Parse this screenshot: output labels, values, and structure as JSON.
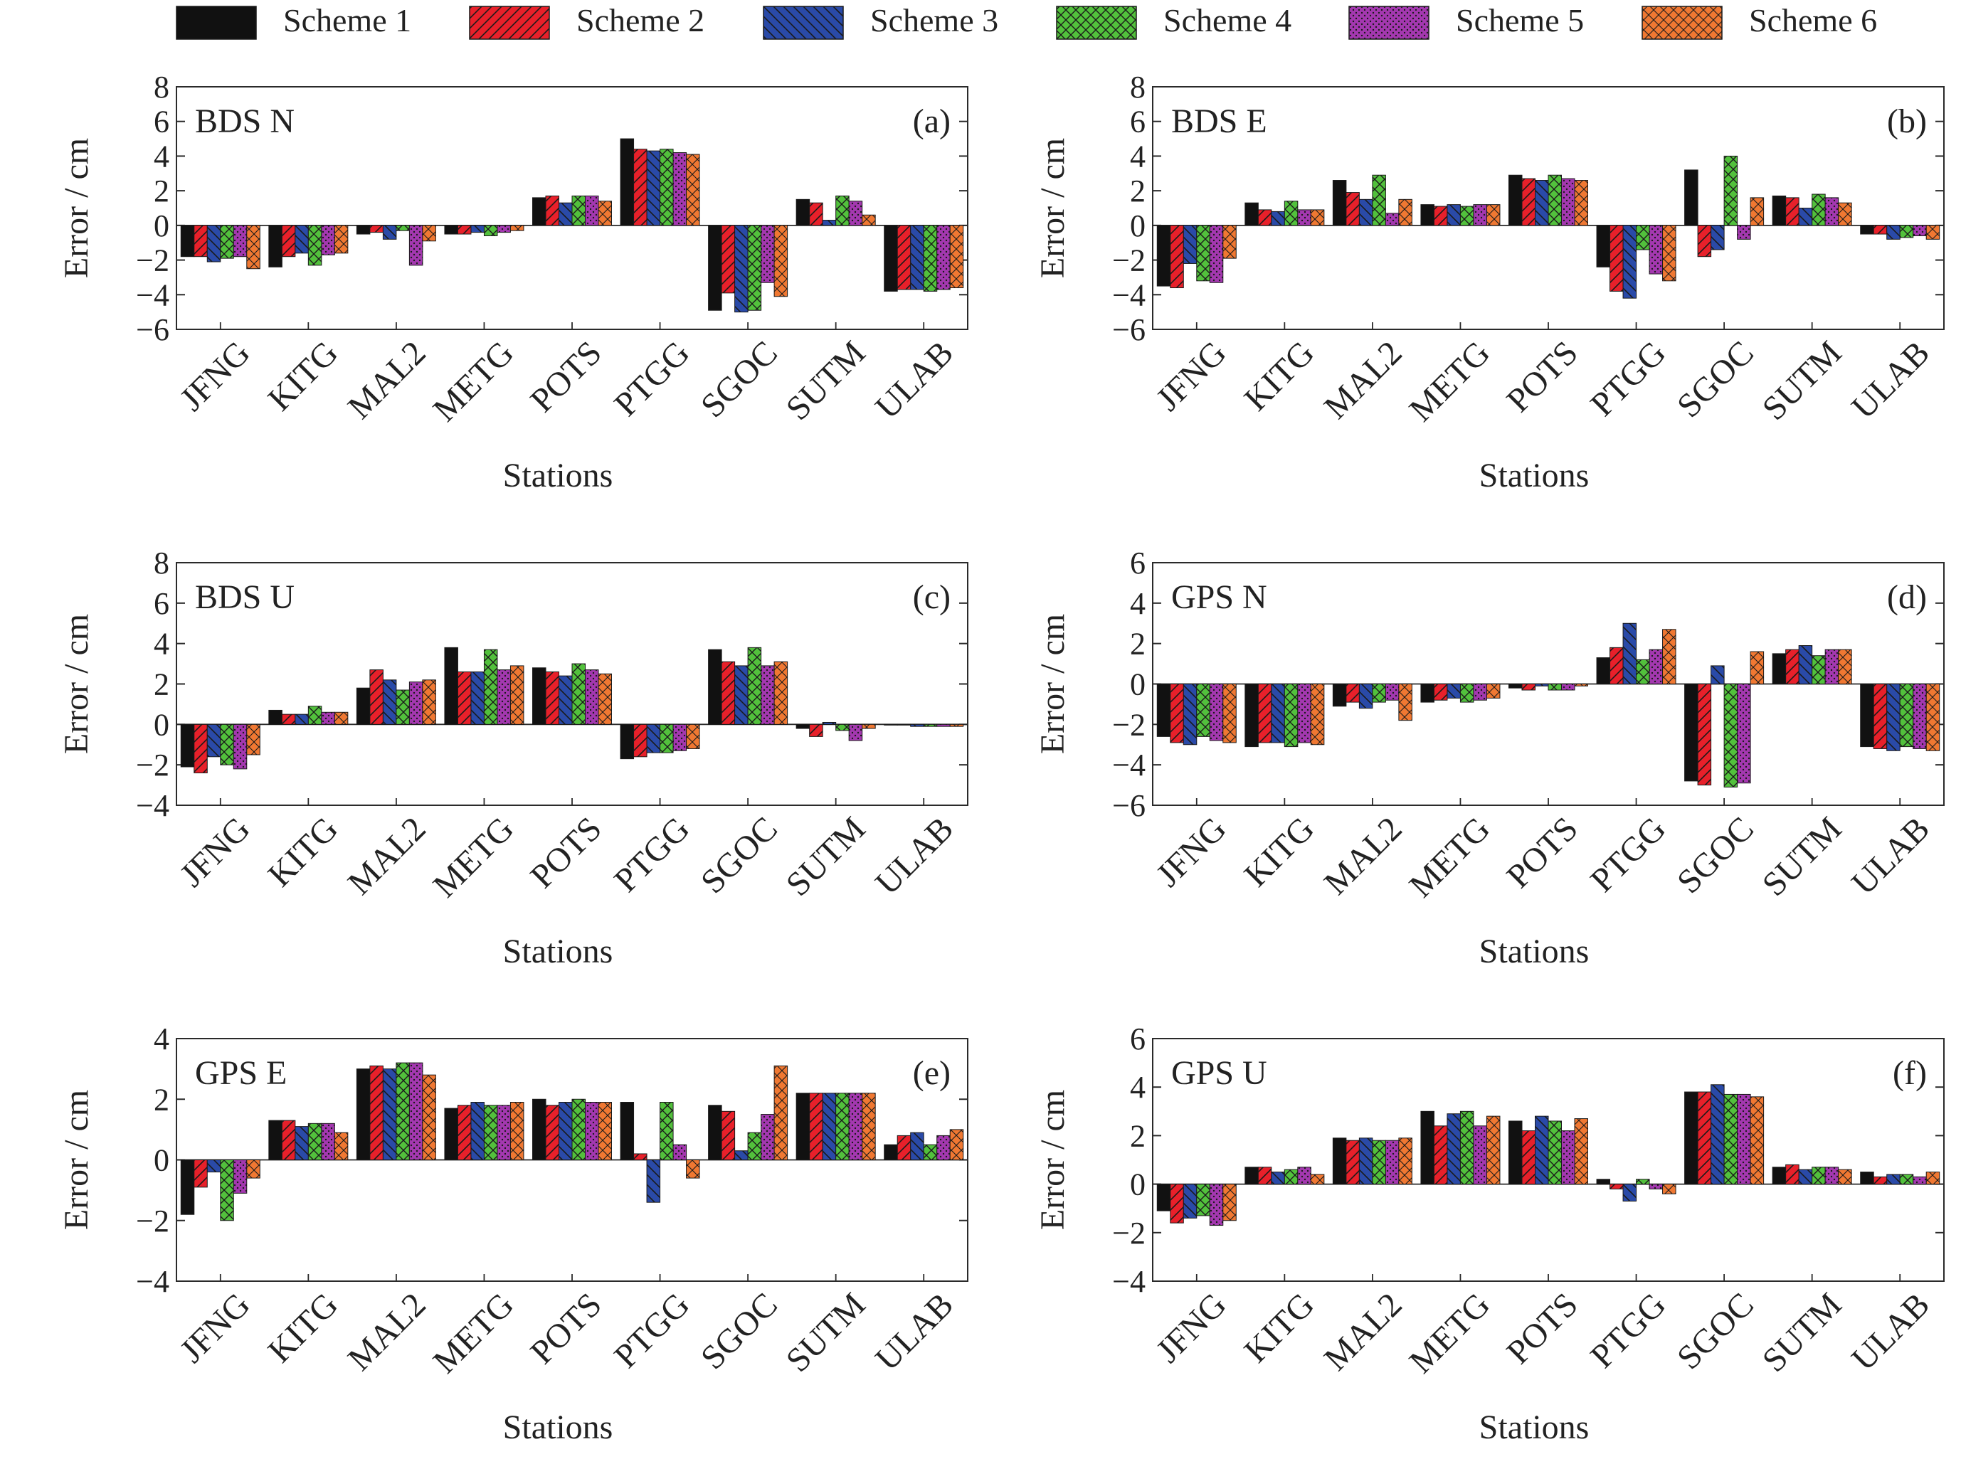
{
  "legend": {
    "entries": [
      "Scheme 1",
      "Scheme 2",
      "Scheme 3",
      "Scheme 4",
      "Scheme 5",
      "Scheme 6"
    ],
    "colors": [
      "#111111",
      "#e8202a",
      "#2a4aa8",
      "#52c13c",
      "#a438b0",
      "#f07832"
    ],
    "patterns": [
      "solid",
      "hatch-right",
      "hatch-left",
      "crosshatch",
      "dots",
      "crosshatch-fine"
    ]
  },
  "chart_data": [
    {
      "type": "bar",
      "panel_title": "BDS N",
      "panel_tag": "(a)",
      "xlabel": "Stations",
      "ylabel": "Error / cm",
      "ylim": [
        -6,
        8
      ],
      "yticks": [
        8,
        6,
        4,
        2,
        0,
        -2,
        -4,
        -6
      ],
      "categories": [
        "JFNG",
        "KITG",
        "MAL2",
        "METG",
        "POTS",
        "PTGG",
        "SGOC",
        "SUTM",
        "ULAB"
      ],
      "series": [
        {
          "name": "Scheme 1",
          "values": [
            -1.8,
            -2.4,
            -0.5,
            -0.5,
            1.6,
            5.0,
            -4.9,
            1.5,
            -3.8
          ]
        },
        {
          "name": "Scheme 2",
          "values": [
            -1.8,
            -1.8,
            -0.4,
            -0.5,
            1.7,
            4.4,
            -3.9,
            1.3,
            -3.7
          ]
        },
        {
          "name": "Scheme 3",
          "values": [
            -2.1,
            -1.6,
            -0.8,
            -0.4,
            1.3,
            4.3,
            -5.0,
            0.3,
            -3.7
          ]
        },
        {
          "name": "Scheme 4",
          "values": [
            -1.9,
            -2.3,
            -0.3,
            -0.6,
            1.7,
            4.4,
            -4.9,
            1.7,
            -3.8
          ]
        },
        {
          "name": "Scheme 5",
          "values": [
            -1.8,
            -1.7,
            -2.3,
            -0.4,
            1.7,
            4.2,
            -3.3,
            1.4,
            -3.7
          ]
        },
        {
          "name": "Scheme 6",
          "values": [
            -2.5,
            -1.6,
            -0.9,
            -0.3,
            1.4,
            4.1,
            -4.1,
            0.6,
            -3.6
          ]
        }
      ]
    },
    {
      "type": "bar",
      "panel_title": "BDS E",
      "panel_tag": "(b)",
      "xlabel": "Stations",
      "ylabel": "Error / cm",
      "ylim": [
        -6,
        8
      ],
      "yticks": [
        8,
        6,
        4,
        2,
        0,
        -2,
        -4,
        -6
      ],
      "categories": [
        "JFNG",
        "KITG",
        "MAL2",
        "METG",
        "POTS",
        "PTGG",
        "SGOC",
        "SUTM",
        "ULAB"
      ],
      "series": [
        {
          "name": "Scheme 1",
          "values": [
            -3.5,
            1.3,
            2.6,
            1.2,
            2.9,
            -2.4,
            3.2,
            1.7,
            -0.5
          ]
        },
        {
          "name": "Scheme 2",
          "values": [
            -3.6,
            0.9,
            1.9,
            1.1,
            2.7,
            -3.8,
            -1.8,
            1.6,
            -0.5
          ]
        },
        {
          "name": "Scheme 3",
          "values": [
            -2.2,
            0.8,
            1.5,
            1.2,
            2.6,
            -4.2,
            -1.4,
            1.0,
            -0.8
          ]
        },
        {
          "name": "Scheme 4",
          "values": [
            -3.2,
            1.4,
            2.9,
            1.1,
            2.9,
            -1.4,
            4.0,
            1.8,
            -0.7
          ]
        },
        {
          "name": "Scheme 5",
          "values": [
            -3.3,
            0.9,
            0.7,
            1.2,
            2.7,
            -2.8,
            -0.8,
            1.6,
            -0.6
          ]
        },
        {
          "name": "Scheme 6",
          "values": [
            -1.9,
            0.9,
            1.5,
            1.2,
            2.6,
            -3.2,
            1.6,
            1.3,
            -0.8
          ]
        }
      ]
    },
    {
      "type": "bar",
      "panel_title": "BDS U",
      "panel_tag": "(c)",
      "xlabel": "Stations",
      "ylabel": "Error / cm",
      "ylim": [
        -4,
        8
      ],
      "yticks": [
        8,
        6,
        4,
        2,
        0,
        -2,
        -4
      ],
      "categories": [
        "JFNG",
        "KITG",
        "MAL2",
        "METG",
        "POTS",
        "PTGG",
        "SGOC",
        "SUTM",
        "ULAB"
      ],
      "series": [
        {
          "name": "Scheme 1",
          "values": [
            -2.1,
            0.7,
            1.8,
            3.8,
            2.8,
            -1.7,
            3.7,
            -0.2,
            0.0
          ]
        },
        {
          "name": "Scheme 2",
          "values": [
            -2.4,
            0.5,
            2.7,
            2.6,
            2.6,
            -1.6,
            3.1,
            -0.6,
            0.0
          ]
        },
        {
          "name": "Scheme 3",
          "values": [
            -1.6,
            0.5,
            2.2,
            2.6,
            2.4,
            -1.4,
            2.9,
            0.1,
            -0.1
          ]
        },
        {
          "name": "Scheme 4",
          "values": [
            -2.0,
            0.9,
            1.7,
            3.7,
            3.0,
            -1.4,
            3.8,
            -0.3,
            -0.1
          ]
        },
        {
          "name": "Scheme 5",
          "values": [
            -2.2,
            0.6,
            2.1,
            2.7,
            2.7,
            -1.3,
            2.9,
            -0.8,
            -0.1
          ]
        },
        {
          "name": "Scheme 6",
          "values": [
            -1.5,
            0.6,
            2.2,
            2.9,
            2.5,
            -1.2,
            3.1,
            -0.2,
            -0.1
          ]
        }
      ]
    },
    {
      "type": "bar",
      "panel_title": "GPS N",
      "panel_tag": "(d)",
      "xlabel": "Stations",
      "ylabel": "Error / cm",
      "ylim": [
        -6,
        6
      ],
      "yticks": [
        6,
        4,
        2,
        0,
        -2,
        -4,
        -6
      ],
      "categories": [
        "JFNG",
        "KITG",
        "MAL2",
        "METG",
        "POTS",
        "PTGG",
        "SGOC",
        "SUTM",
        "ULAB"
      ],
      "series": [
        {
          "name": "Scheme 1",
          "values": [
            -2.6,
            -3.1,
            -1.1,
            -0.9,
            -0.2,
            1.3,
            -4.8,
            1.5,
            -3.1
          ]
        },
        {
          "name": "Scheme 2",
          "values": [
            -2.9,
            -2.9,
            -0.9,
            -0.8,
            -0.3,
            1.8,
            -5.0,
            1.7,
            -3.2
          ]
        },
        {
          "name": "Scheme 3",
          "values": [
            -3.0,
            -2.9,
            -1.2,
            -0.7,
            -0.1,
            3.0,
            0.9,
            1.9,
            -3.3
          ]
        },
        {
          "name": "Scheme 4",
          "values": [
            -2.6,
            -3.1,
            -0.9,
            -0.9,
            -0.3,
            1.2,
            -5.1,
            1.4,
            -3.1
          ]
        },
        {
          "name": "Scheme 5",
          "values": [
            -2.8,
            -2.9,
            -0.8,
            -0.8,
            -0.3,
            1.7,
            -4.9,
            1.7,
            -3.2
          ]
        },
        {
          "name": "Scheme 6",
          "values": [
            -2.9,
            -3.0,
            -1.8,
            -0.7,
            -0.1,
            2.7,
            1.6,
            1.7,
            -3.3
          ]
        }
      ]
    },
    {
      "type": "bar",
      "panel_title": "GPS E",
      "panel_tag": "(e)",
      "xlabel": "Stations",
      "ylabel": "Error / cm",
      "ylim": [
        -4,
        4
      ],
      "yticks": [
        4,
        2,
        0,
        -2,
        -4
      ],
      "categories": [
        "JFNG",
        "KITG",
        "MAL2",
        "METG",
        "POTS",
        "PTGG",
        "SGOC",
        "SUTM",
        "ULAB"
      ],
      "series": [
        {
          "name": "Scheme 1",
          "values": [
            -1.8,
            1.3,
            3.0,
            1.7,
            2.0,
            1.9,
            1.8,
            2.2,
            0.5
          ]
        },
        {
          "name": "Scheme 2",
          "values": [
            -0.9,
            1.3,
            3.1,
            1.8,
            1.8,
            0.2,
            1.6,
            2.2,
            0.8
          ]
        },
        {
          "name": "Scheme 3",
          "values": [
            -0.4,
            1.1,
            3.0,
            1.9,
            1.9,
            -1.4,
            0.3,
            2.2,
            0.9
          ]
        },
        {
          "name": "Scheme 4",
          "values": [
            -2.0,
            1.2,
            3.2,
            1.8,
            2.0,
            1.9,
            0.9,
            2.2,
            0.5
          ]
        },
        {
          "name": "Scheme 5",
          "values": [
            -1.1,
            1.2,
            3.2,
            1.8,
            1.9,
            0.5,
            1.5,
            2.2,
            0.8
          ]
        },
        {
          "name": "Scheme 6",
          "values": [
            -0.6,
            0.9,
            2.8,
            1.9,
            1.9,
            -0.6,
            3.1,
            2.2,
            1.0
          ]
        }
      ]
    },
    {
      "type": "bar",
      "panel_title": "GPS U",
      "panel_tag": "(f)",
      "xlabel": "Stations",
      "ylabel": "Error / cm",
      "ylim": [
        -4,
        6
      ],
      "yticks": [
        6,
        4,
        2,
        0,
        -2,
        -4
      ],
      "categories": [
        "JFNG",
        "KITG",
        "MAL2",
        "METG",
        "POTS",
        "PTGG",
        "SGOC",
        "SUTM",
        "ULAB"
      ],
      "series": [
        {
          "name": "Scheme 1",
          "values": [
            -1.1,
            0.7,
            1.9,
            3.0,
            2.6,
            0.2,
            3.8,
            0.7,
            0.5
          ]
        },
        {
          "name": "Scheme 2",
          "values": [
            -1.6,
            0.7,
            1.8,
            2.4,
            2.2,
            -0.2,
            3.8,
            0.8,
            0.3
          ]
        },
        {
          "name": "Scheme 3",
          "values": [
            -1.4,
            0.5,
            1.9,
            2.9,
            2.8,
            -0.7,
            4.1,
            0.6,
            0.4
          ]
        },
        {
          "name": "Scheme 4",
          "values": [
            -1.3,
            0.6,
            1.8,
            3.0,
            2.6,
            0.2,
            3.7,
            0.7,
            0.4
          ]
        },
        {
          "name": "Scheme 5",
          "values": [
            -1.7,
            0.7,
            1.8,
            2.4,
            2.2,
            -0.2,
            3.7,
            0.7,
            0.3
          ]
        },
        {
          "name": "Scheme 6",
          "values": [
            -1.5,
            0.4,
            1.9,
            2.8,
            2.7,
            -0.4,
            3.6,
            0.6,
            0.5
          ]
        }
      ]
    }
  ]
}
